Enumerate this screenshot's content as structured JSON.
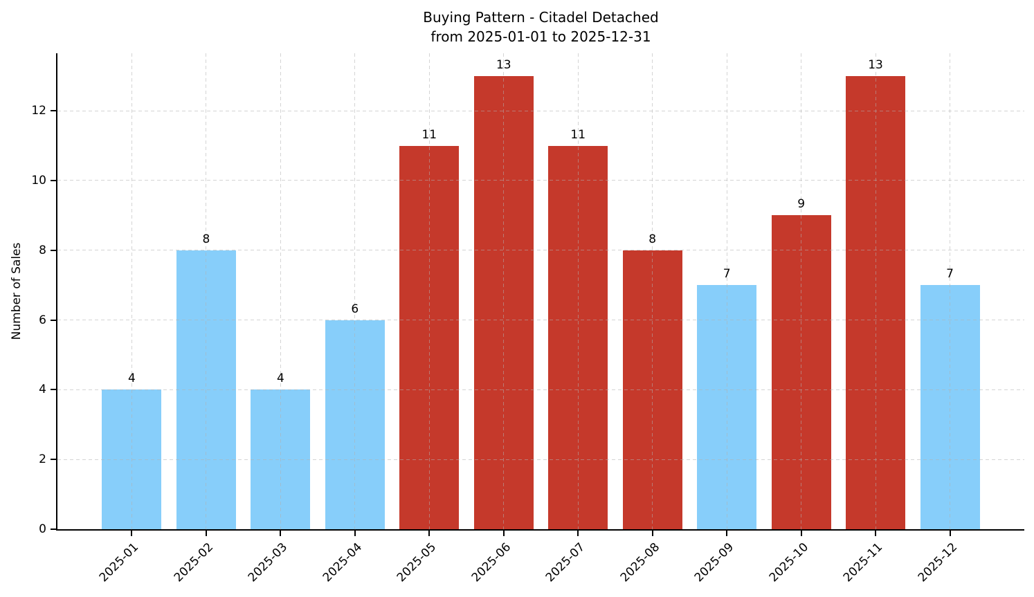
{
  "chart_data": {
    "type": "bar",
    "title": "Buying Pattern - Citadel Detached",
    "subtitle": "from 2025-01-01 to 2025-12-31",
    "categories": [
      "2025-01",
      "2025-02",
      "2025-03",
      "2025-04",
      "2025-05",
      "2025-06",
      "2025-07",
      "2025-08",
      "2025-09",
      "2025-10",
      "2025-11",
      "2025-12"
    ],
    "values": [
      4,
      8,
      4,
      6,
      11,
      13,
      11,
      8,
      7,
      9,
      13,
      7
    ],
    "bar_colors": [
      "#87CEFA",
      "#87CEFA",
      "#87CEFA",
      "#87CEFA",
      "#C5392B",
      "#C5392B",
      "#C5392B",
      "#C5392B",
      "#87CEFA",
      "#C5392B",
      "#C5392B",
      "#87CEFA"
    ],
    "value_label_color": "#000000",
    "xlabel": "",
    "ylabel": "Number of Sales",
    "ylim": [
      0,
      13.65
    ],
    "yticks": [
      0,
      2,
      4,
      6,
      8,
      10,
      12
    ],
    "grid": true,
    "grid_style": "dashed",
    "grid_color": "#b0b0b0",
    "legend": false,
    "palette": {
      "low_color": "#87CEFA",
      "high_color": "#C5392B"
    }
  }
}
